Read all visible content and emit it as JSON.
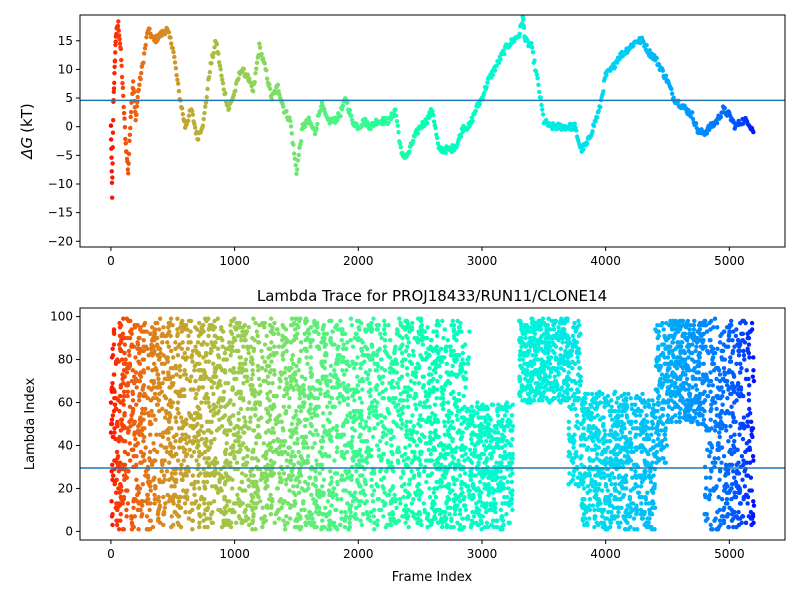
{
  "chart_data": [
    {
      "type": "scatter",
      "title": "",
      "xlabel": "",
      "ylabel": "ΔG (kT)",
      "ylabel_symbol": "ΔG",
      "ylabel_unit": "(kT)",
      "xlim": [
        -250,
        5450
      ],
      "ylim": [
        -21,
        19.5
      ],
      "xticks": [
        0,
        1000,
        2000,
        3000,
        4000,
        5000
      ],
      "yticks": [
        -20,
        -15,
        -10,
        -5,
        0,
        5,
        10,
        15
      ],
      "hline": 4.6,
      "hline_color": "#1f77b4",
      "colormap": "rainbow (red at frame 0 to violet at final frame)",
      "series": [
        {
          "x": [
            0,
            10,
            20,
            30,
            40,
            60,
            80,
            100,
            120,
            140,
            160,
            180,
            200,
            220,
            250,
            300,
            350,
            400,
            450,
            500,
            550,
            600,
            650,
            700,
            750,
            800,
            850,
            900,
            950,
            1000,
            1050,
            1100,
            1150,
            1200,
            1250,
            1300,
            1350,
            1400,
            1450,
            1500,
            1550,
            1600,
            1650,
            1700,
            1750,
            1800,
            1850,
            1900,
            1950,
            2000,
            2050,
            2100,
            2150,
            2200,
            2250,
            2300,
            2350,
            2400,
            2450,
            2500,
            2550,
            2600,
            2650,
            2700,
            2750,
            2800,
            2850,
            2900,
            2950,
            3000,
            3050,
            3100,
            3150,
            3200,
            3250,
            3300,
            3330,
            3350,
            3400,
            3450,
            3500,
            3550,
            3600,
            3650,
            3700,
            3750,
            3800,
            3850,
            3900,
            3950,
            4000,
            4050,
            4100,
            4150,
            4200,
            4250,
            4300,
            4350,
            4400,
            4450,
            4500,
            4550,
            4600,
            4650,
            4700,
            4750,
            4800,
            4850,
            4900,
            4950,
            5000,
            5050,
            5100,
            5150,
            5200
          ],
          "y": [
            0,
            -12,
            4,
            10,
            16,
            18,
            13,
            5,
            -3,
            -8,
            2,
            8,
            1,
            6,
            10,
            17,
            15,
            16,
            17,
            14,
            6,
            0,
            3,
            -2,
            1,
            10,
            15,
            8,
            3,
            6,
            10,
            9,
            6,
            14,
            10,
            5,
            7,
            3,
            1,
            -8,
            0,
            1,
            -1,
            4,
            1,
            1,
            2,
            5,
            1,
            0,
            1,
            0,
            1,
            1,
            1,
            3,
            -5,
            -5,
            -2,
            0,
            1,
            3,
            -4,
            -4,
            -4,
            -3,
            0,
            0,
            3,
            5,
            8,
            10,
            12,
            14,
            15,
            16,
            19,
            15,
            14,
            8,
            1,
            0,
            0,
            0,
            0,
            0,
            -4,
            -3,
            0,
            3,
            9,
            10,
            12,
            13,
            14,
            15,
            15,
            13,
            12,
            10,
            8,
            5,
            4,
            3,
            2,
            -1,
            -1,
            0,
            1,
            3,
            2,
            0,
            1,
            1,
            -1
          ]
        }
      ]
    },
    {
      "type": "scatter",
      "title": "Lambda Trace for PROJ18433/RUN11/CLONE14",
      "xlabel": "Frame Index",
      "ylabel": "Lambda Index",
      "xlim": [
        -250,
        5450
      ],
      "ylim": [
        -4,
        104
      ],
      "xticks": [
        0,
        1000,
        2000,
        3000,
        4000,
        5000
      ],
      "yticks": [
        0,
        20,
        40,
        60,
        80,
        100
      ],
      "hline": 29.5,
      "hline_color": "#1f77b4",
      "colormap": "rainbow (red at frame 0 to violet at final frame)",
      "frame_range": [
        0,
        5200
      ],
      "lambda_range": [
        1,
        99
      ],
      "regions": [
        {
          "x_range": [
            0,
            2900
          ],
          "y_range": [
            1,
            99
          ]
        },
        {
          "x_range": [
            2900,
            3250
          ],
          "y_range": [
            1,
            60
          ]
        },
        {
          "x_range": [
            3300,
            3700
          ],
          "y_range": [
            60,
            99
          ]
        },
        {
          "x_range": [
            3700,
            3800
          ],
          "y_range": [
            20,
            99
          ]
        },
        {
          "x_range": [
            3800,
            4400
          ],
          "y_range": [
            1,
            65
          ]
        },
        {
          "x_range": [
            4400,
            4500
          ],
          "y_range": [
            30,
            99
          ]
        },
        {
          "x_range": [
            4500,
            4800
          ],
          "y_range": [
            50,
            99
          ]
        },
        {
          "x_range": [
            4800,
            5200
          ],
          "y_range": [
            1,
            99
          ]
        }
      ]
    }
  ]
}
